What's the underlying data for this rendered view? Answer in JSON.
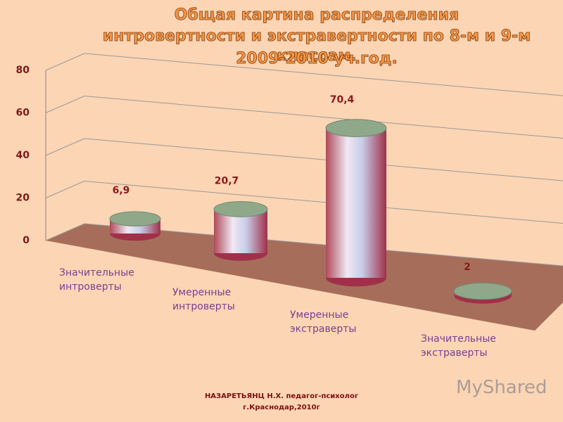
{
  "chart_data": {
    "type": "bar",
    "title": [
      "Общая картина распределения",
      "интровертности и экстравертности по 8-м и 9-м классам.",
      "2009-2010 уч.год."
    ],
    "categories": [
      "Значительные интроверты",
      "Умеренные интроверты",
      "Умеренные экстраверты",
      "Значительные экстраверты"
    ],
    "values": [
      6.9,
      20.7,
      70.4,
      2
    ],
    "value_labels": [
      "6,9",
      "20,7",
      "70,4",
      "2"
    ],
    "ylim": [
      0,
      80
    ],
    "yticks": [
      0,
      20,
      40,
      60,
      80
    ],
    "grid": true
  },
  "footer": [
    "НАЗАРЕТЬЯНЦ Н.Х. педагог-психолог",
    "г.Краснодар,2010г"
  ],
  "watermark": "MyShared"
}
